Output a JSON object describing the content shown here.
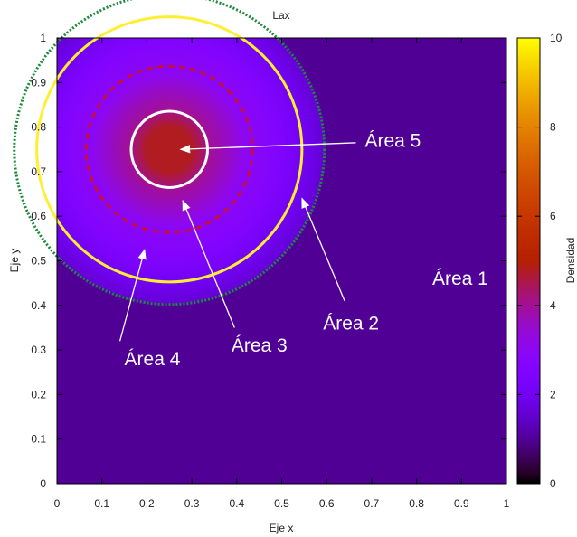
{
  "chart_data": {
    "type": "heatmap",
    "title": "Lax",
    "xlabel": "Eje x",
    "ylabel": "Eje y",
    "xlim": [
      0,
      1
    ],
    "ylim": [
      0,
      1
    ],
    "x_ticks": [
      "0",
      "0.1",
      "0.2",
      "0.3",
      "0.4",
      "0.5",
      "0.6",
      "0.7",
      "0.8",
      "0.9",
      "1"
    ],
    "y_ticks": [
      "0",
      "0.1",
      "0.2",
      "0.3",
      "0.4",
      "0.5",
      "0.6",
      "0.7",
      "0.8",
      "0.9",
      "1"
    ],
    "colorbar": {
      "label": "Densidad",
      "range": [
        0,
        10
      ],
      "ticks": [
        "0",
        "2",
        "4",
        "6",
        "8",
        "10"
      ],
      "colormap": "black-purple-red-orange-yellow"
    },
    "field": {
      "center": [
        0.25,
        0.75
      ],
      "background_density": 1.0,
      "peak_density": 4.8,
      "profile": [
        [
          0.0,
          4.8
        ],
        [
          0.05,
          4.8
        ],
        [
          0.09,
          4.0
        ],
        [
          0.17,
          3.0
        ],
        [
          0.24,
          2.6
        ],
        [
          0.3,
          2.0
        ],
        [
          0.34,
          1.6
        ],
        [
          0.35,
          1.0
        ]
      ]
    },
    "circles": [
      {
        "name": "Área 5 boundary",
        "radius": 0.085,
        "color": "#ffffff",
        "style": "solid"
      },
      {
        "name": "Área 3 boundary",
        "radius": 0.185,
        "color": "#cc1122",
        "style": "dashed"
      },
      {
        "name": "Área 4 boundary",
        "radius": 0.295,
        "color": "#ffee33",
        "style": "solid"
      },
      {
        "name": "Área 2 boundary",
        "radius": 0.345,
        "color": "#1b8a3a",
        "style": "dotted"
      }
    ],
    "annotations": [
      {
        "label": "Área 5",
        "text_at": [
          0.685,
          0.77
        ],
        "arrow_from": [
          0.665,
          0.765
        ],
        "arrow_to": [
          0.275,
          0.75
        ]
      },
      {
        "label": "Área 3",
        "text_at": [
          0.388,
          0.31
        ],
        "arrow_from": [
          0.395,
          0.35
        ],
        "arrow_to": [
          0.28,
          0.635
        ]
      },
      {
        "label": "Área 4",
        "text_at": [
          0.15,
          0.28
        ],
        "arrow_from": [
          0.14,
          0.32
        ],
        "arrow_to": [
          0.195,
          0.525
        ]
      },
      {
        "label": "Área 2",
        "text_at": [
          0.592,
          0.36
        ],
        "arrow_from": [
          0.64,
          0.41
        ],
        "arrow_to": [
          0.545,
          0.64
        ]
      },
      {
        "label": "Área 1",
        "text_at": [
          0.835,
          0.46
        ],
        "arrow_from": null,
        "arrow_to": null
      }
    ]
  }
}
